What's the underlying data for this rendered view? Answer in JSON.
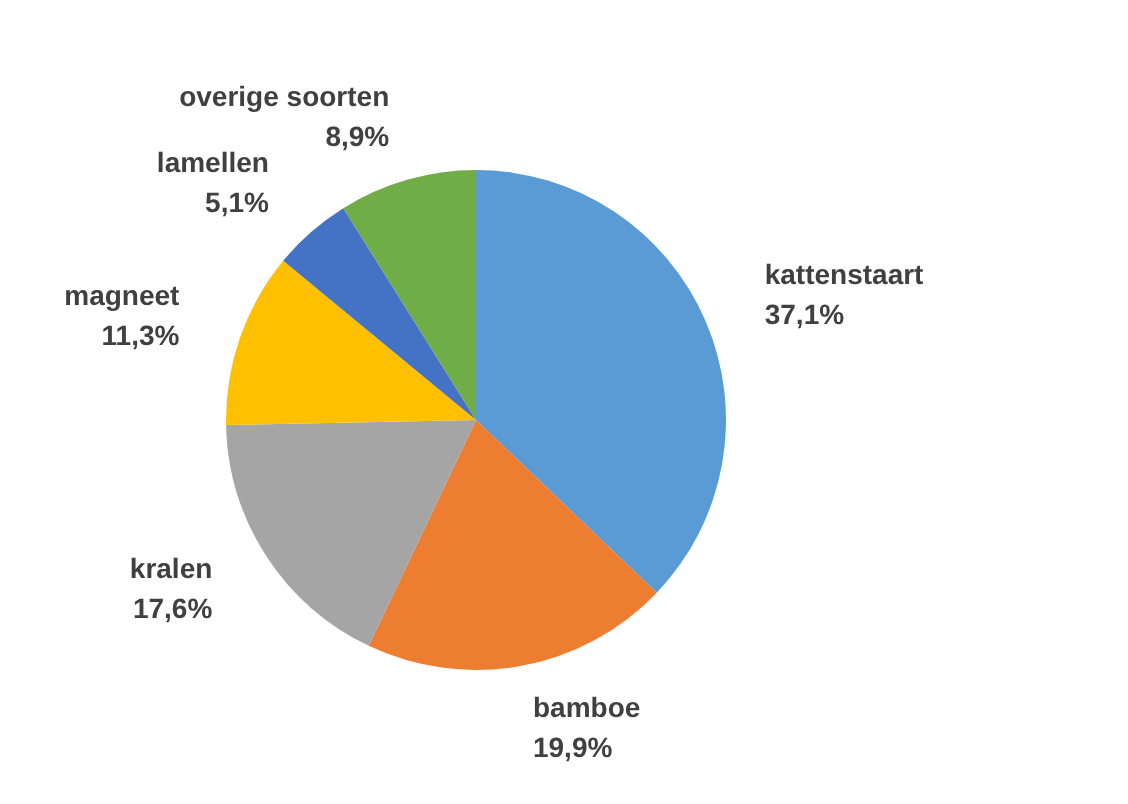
{
  "chart_data": {
    "type": "pie",
    "categories": [
      "kattenstaart",
      "bamboe",
      "kralen",
      "magneet",
      "lamellen",
      "overige soorten"
    ],
    "values": [
      37.1,
      19.9,
      17.6,
      11.3,
      5.1,
      8.9
    ],
    "value_labels": [
      "37,1%",
      "19,9%",
      "17,6%",
      "11,3%",
      "5,1%",
      "8,9%"
    ],
    "colors": [
      "#5b9bd5",
      "#ed7d31",
      "#a5a5a5",
      "#ffc000",
      "#4472c4",
      "#70ad47"
    ],
    "legend": false
  }
}
